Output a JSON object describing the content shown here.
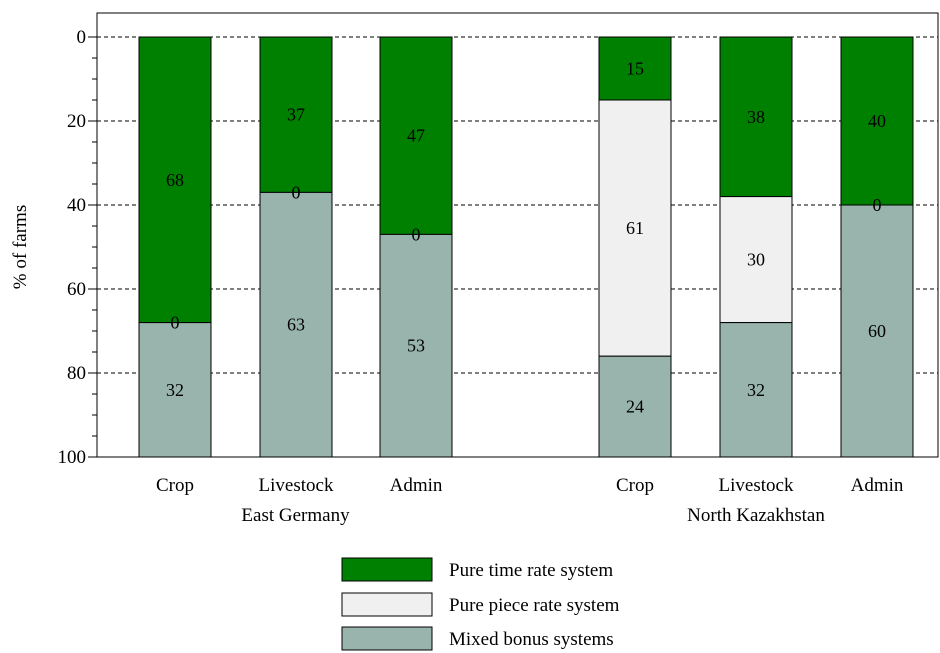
{
  "chart_data": {
    "type": "bar",
    "stacked": true,
    "orientation": "vertical",
    "y_inverted": true,
    "ylabel": "% of farms",
    "ylim": [
      0,
      100
    ],
    "yticks": [
      0,
      20,
      40,
      60,
      80,
      100
    ],
    "grid": "horizontal-dashed",
    "groups": [
      {
        "name": "East Germany",
        "categories": [
          {
            "name": "Crop",
            "values": [
              68,
              0,
              32
            ]
          },
          {
            "name": "Livestock",
            "values": [
              37,
              0,
              63
            ]
          },
          {
            "name": "Admin",
            "values": [
              47,
              0,
              53
            ]
          }
        ]
      },
      {
        "name": "North Kazakhstan",
        "categories": [
          {
            "name": "Crop",
            "values": [
              15,
              61,
              24
            ]
          },
          {
            "name": "Livestock",
            "values": [
              38,
              30,
              32
            ]
          },
          {
            "name": "Admin",
            "values": [
              40,
              0,
              60
            ]
          }
        ]
      }
    ],
    "series": [
      {
        "name": "Pure time rate system",
        "color": "#008000"
      },
      {
        "name": "Pure piece rate system",
        "color": "#f0f0f0"
      },
      {
        "name": "Mixed bonus systems",
        "color": "#98b4ac"
      }
    ],
    "legend_position": "bottom"
  }
}
